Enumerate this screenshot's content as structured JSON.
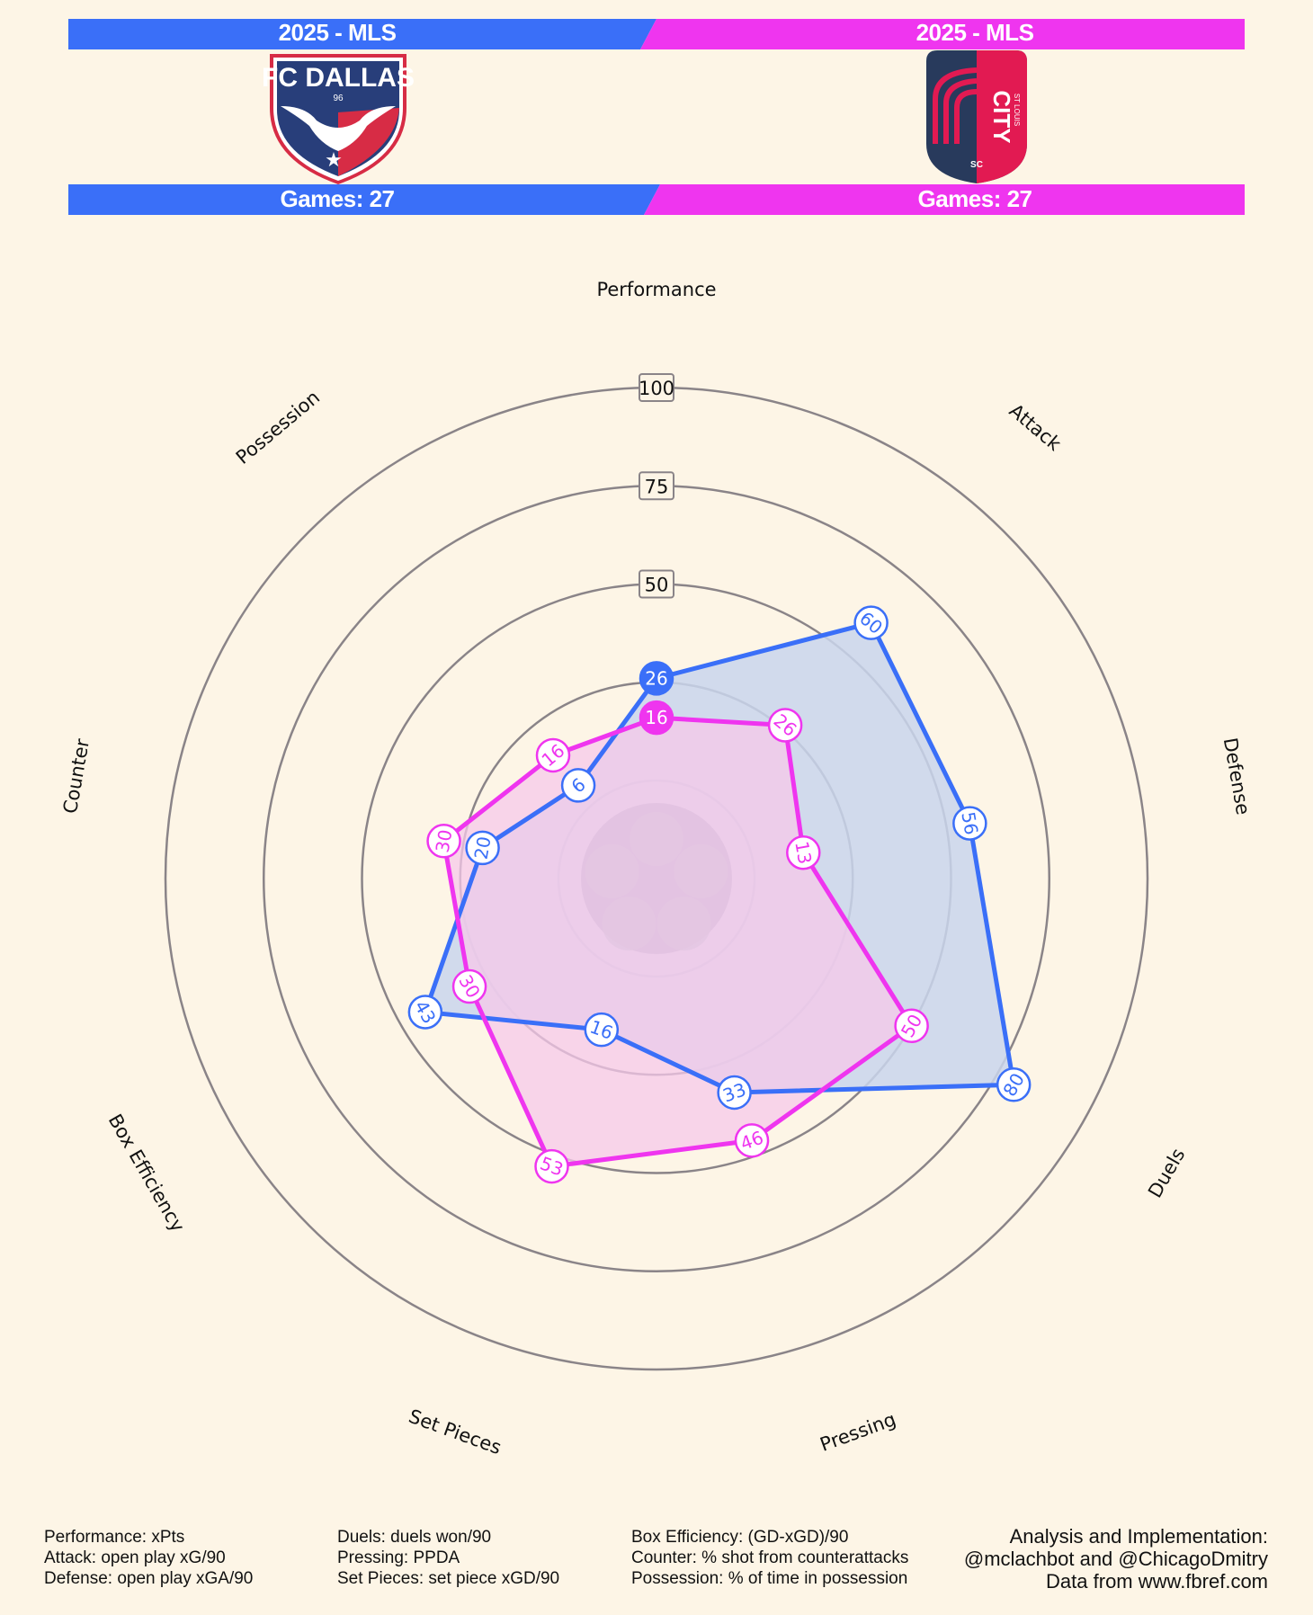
{
  "header": {
    "left": {
      "league": "2025 - MLS",
      "games": "Games: 27",
      "color": "#3a6ff8"
    },
    "right": {
      "league": "2025 - MLS",
      "games": "Games: 27",
      "color": "#ef35ef"
    }
  },
  "logos": {
    "left": {
      "name": "fc-dallas-logo",
      "text": "FC DALLAS",
      "sub": "96"
    },
    "right": {
      "name": "st-louis-city-sc-logo",
      "text": "CITY",
      "top": "ST LOUIS",
      "sub": "SC"
    }
  },
  "chart_data": {
    "type": "radar",
    "axes": [
      "Performance",
      "Attack",
      "Defense",
      "Duels",
      "Pressing",
      "Set Pieces",
      "Box Efficiency",
      "Counter",
      "Possession"
    ],
    "rlim": [
      -50,
      100
    ],
    "ring_ticks": [
      50,
      75,
      100
    ],
    "series": [
      {
        "values": [
          26,
          60,
          56,
          80,
          33,
          16,
          43,
          20,
          6
        ],
        "color": "#3a6ff8",
        "fill": "#c9d5ec"
      },
      {
        "values": [
          16,
          26,
          13,
          50,
          46,
          53,
          30,
          30,
          16
        ],
        "color": "#ef35ef",
        "fill": "#f5c8ea"
      }
    ]
  },
  "footer": {
    "col1": [
      "Performance: xPts",
      "Attack: open play xG/90",
      "Defense: open play xGA/90"
    ],
    "col2": [
      "Duels: duels won/90",
      "Pressing: PPDA",
      "Set Pieces: set piece xGD/90"
    ],
    "col3": [
      "Box Efficiency: (GD-xGD)/90",
      "Counter: % shot from counterattacks",
      "Possession: % of time in possession"
    ],
    "credits": [
      "Analysis and Implementation:",
      "@mclachbot and @ChicagoDmitry",
      "Data from www.fbref.com"
    ]
  }
}
